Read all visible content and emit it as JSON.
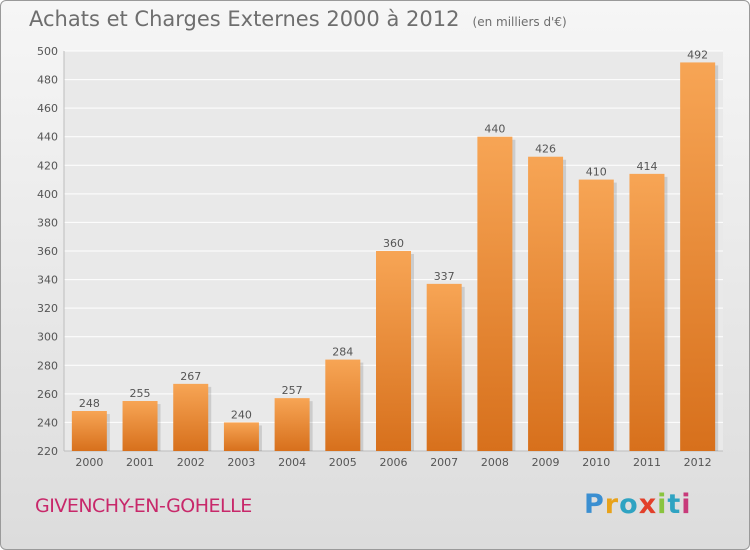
{
  "title": "Achats et Charges Externes 2000 à 2012",
  "subtitle": "(en milliers d'€)",
  "commune": "GIVENCHY-EN-GOHELLE",
  "logo": {
    "text": "Proxiti",
    "letter_colors": [
      "#3b8fd1",
      "#e8a21a",
      "#2fa3c2",
      "#e2402a",
      "#8ac43f",
      "#2fa3c2",
      "#c83a7a"
    ]
  },
  "colors": {
    "bar": "#f09030",
    "bar_light": "#f7a555",
    "bar_dark": "#d7701c",
    "grid": "#ffffff",
    "axis_text": "#555555",
    "commune_text": "#c8286a"
  },
  "chart_data": {
    "type": "bar",
    "title": "Achats et Charges Externes 2000 à 2012",
    "subtitle": "(en milliers d'€)",
    "categories": [
      "2000",
      "2001",
      "2002",
      "2003",
      "2004",
      "2005",
      "2006",
      "2007",
      "2008",
      "2009",
      "2010",
      "2011",
      "2012"
    ],
    "values": [
      248,
      255,
      267,
      240,
      257,
      284,
      360,
      337,
      440,
      426,
      410,
      414,
      492
    ],
    "ylim": [
      220,
      500
    ],
    "yticks": [
      220,
      240,
      260,
      280,
      300,
      320,
      340,
      360,
      380,
      400,
      420,
      440,
      460,
      480,
      500
    ],
    "grid": true,
    "data_labels": true
  }
}
